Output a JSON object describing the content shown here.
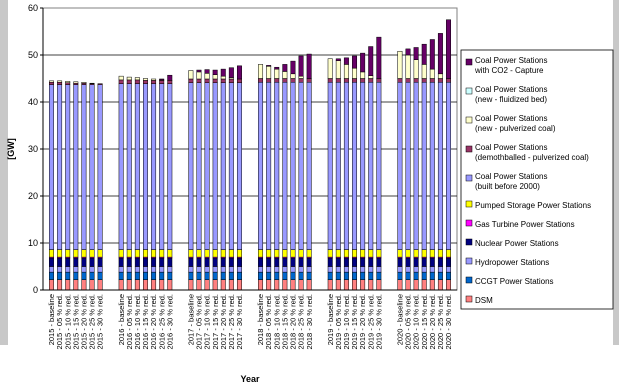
{
  "chart_data": {
    "type": "bar",
    "stacked": true,
    "title": "",
    "xlabel": "Year",
    "ylabel": "[GW]",
    "ylim": [
      0,
      60
    ],
    "yticks": [
      0,
      10,
      20,
      30,
      40,
      50,
      60
    ],
    "grid": true,
    "legend_position": "right",
    "categories": [
      "2015 - baseline",
      "2015 - 05 % red.",
      "2015 - 10 % red.",
      "2015 - 15 % red.",
      "2015 - 20 % red.",
      "2015 - 25 % red.",
      "2015 - 30 % red.",
      "2016 - baseline",
      "2016 - 05 % red.",
      "2016 - 10 % red.",
      "2016 - 15 % red.",
      "2016 - 20 % red.",
      "2016 - 25 % red.",
      "2016 - 30 % red.",
      "2017 - baseline",
      "2017 - 05 % red.",
      "2017 - 10 % red.",
      "2017 - 15 % red.",
      "2017 - 20 % red.",
      "2017 - 25 % red.",
      "2017 - 30 % red.",
      "2018 - baseline",
      "2018 - 05 % red.",
      "2018 - 10 % red.",
      "2018 - 15 % red.",
      "2018 - 20 % red.",
      "2018 - 25 % red.",
      "2018 - 30 % red.",
      "2019 - baseline",
      "2019 - 05 % red.",
      "2019 - 10 % red.",
      "2019 - 15 % red.",
      "2019 - 20 % red.",
      "2019 - 25 % red.",
      "2019 - 30 % red.",
      "2020 - baseline",
      "2020 - 05 % red.",
      "2020 - 10 % red.",
      "2020 - 15 % red.",
      "2020 - 20 % red.",
      "2020 - 25 % red.",
      "2020 - 30 % red."
    ],
    "series": [
      {
        "name": "DSM",
        "color": "#FF8080",
        "values": [
          2.2,
          2.2,
          2.2,
          2.2,
          2.2,
          2.2,
          2.2,
          2.2,
          2.2,
          2.2,
          2.2,
          2.2,
          2.2,
          2.2,
          2.2,
          2.2,
          2.2,
          2.2,
          2.2,
          2.2,
          2.2,
          2.2,
          2.2,
          2.2,
          2.2,
          2.2,
          2.2,
          2.2,
          2.2,
          2.2,
          2.2,
          2.2,
          2.2,
          2.2,
          2.2,
          2.2,
          2.2,
          2.2,
          2.2,
          2.2,
          2.2,
          2.2
        ]
      },
      {
        "name": "CCGT Power Stations",
        "color": "#0066CC",
        "values": [
          1.6,
          1.6,
          1.6,
          1.6,
          1.6,
          1.6,
          1.6,
          1.6,
          1.6,
          1.6,
          1.6,
          1.6,
          1.6,
          1.6,
          1.6,
          1.6,
          1.6,
          1.6,
          1.6,
          1.6,
          1.6,
          1.6,
          1.6,
          1.6,
          1.6,
          1.6,
          1.6,
          1.6,
          1.6,
          1.6,
          1.6,
          1.6,
          1.6,
          1.6,
          1.6,
          1.6,
          1.6,
          1.6,
          1.6,
          1.6,
          1.6,
          1.6
        ]
      },
      {
        "name": "Hydropower Stations",
        "color": "#9999FF",
        "values": [
          1.2,
          1.2,
          1.2,
          1.2,
          1.2,
          1.2,
          1.2,
          1.2,
          1.2,
          1.2,
          1.2,
          1.2,
          1.2,
          1.2,
          1.2,
          1.2,
          1.2,
          1.2,
          1.2,
          1.2,
          1.2,
          1.2,
          1.2,
          1.2,
          1.2,
          1.2,
          1.2,
          1.2,
          1.2,
          1.2,
          1.2,
          1.2,
          1.2,
          1.2,
          1.2,
          1.2,
          1.2,
          1.2,
          1.2,
          1.2,
          1.2,
          1.2
        ]
      },
      {
        "name": "Nuclear Power Stations",
        "color": "#000080",
        "values": [
          1.8,
          1.8,
          1.8,
          1.8,
          1.8,
          1.8,
          1.8,
          1.8,
          1.8,
          1.8,
          1.8,
          1.8,
          1.8,
          1.8,
          1.8,
          1.8,
          1.8,
          1.8,
          1.8,
          1.8,
          1.8,
          1.8,
          1.8,
          1.8,
          1.8,
          1.8,
          1.8,
          1.8,
          1.8,
          1.8,
          1.8,
          1.8,
          1.8,
          1.8,
          1.8,
          1.8,
          1.8,
          1.8,
          1.8,
          1.8,
          1.8,
          1.8
        ]
      },
      {
        "name": "Gas Turbine Power Stations",
        "color": "#FF00FF",
        "values": [
          0.2,
          0.2,
          0.2,
          0.2,
          0.2,
          0.2,
          0.2,
          0.2,
          0.2,
          0.2,
          0.2,
          0.2,
          0.2,
          0.2,
          0.2,
          0.2,
          0.2,
          0.2,
          0.2,
          0.2,
          0.2,
          0.2,
          0.2,
          0.2,
          0.2,
          0.2,
          0.2,
          0.2,
          0.2,
          0.2,
          0.2,
          0.2,
          0.2,
          0.2,
          0.2,
          0.2,
          0.2,
          0.2,
          0.2,
          0.2,
          0.2,
          0.2
        ]
      },
      {
        "name": "Pumped Storage Power Stations",
        "color": "#FFFF00",
        "values": [
          1.6,
          1.6,
          1.6,
          1.6,
          1.6,
          1.6,
          1.6,
          1.6,
          1.6,
          1.6,
          1.6,
          1.6,
          1.6,
          1.6,
          1.6,
          1.6,
          1.6,
          1.6,
          1.6,
          1.6,
          1.6,
          1.6,
          1.6,
          1.6,
          1.6,
          1.6,
          1.6,
          1.6,
          1.6,
          1.6,
          1.6,
          1.6,
          1.6,
          1.6,
          1.6,
          1.6,
          1.6,
          1.6,
          1.6,
          1.6,
          1.6,
          1.6
        ]
      },
      {
        "name": "Coal Power Stations\n(built before 2000)",
        "color": "#9999FF",
        "values": [
          35.1,
          35.1,
          35.1,
          35.1,
          35.1,
          35.1,
          35.1,
          35.3,
          35.3,
          35.3,
          35.3,
          35.3,
          35.3,
          35.3,
          35.5,
          35.5,
          35.5,
          35.5,
          35.5,
          35.5,
          35.5,
          35.6,
          35.6,
          35.6,
          35.6,
          35.6,
          35.6,
          35.6,
          35.6,
          35.6,
          35.6,
          35.6,
          35.6,
          35.6,
          35.6,
          35.6,
          35.6,
          35.6,
          35.6,
          35.6,
          35.6,
          35.6
        ]
      },
      {
        "name": "Coal Power Stations\n(demothballed - pulverized coal)",
        "color": "#993366",
        "values": [
          0.5,
          0.5,
          0.4,
          0.3,
          0.3,
          0.2,
          0.2,
          0.8,
          0.8,
          0.8,
          0.7,
          0.7,
          0.7,
          0.7,
          0.8,
          0.8,
          0.8,
          0.8,
          0.8,
          0.8,
          0.8,
          0.8,
          0.8,
          0.8,
          0.8,
          0.8,
          0.8,
          0.8,
          0.8,
          0.8,
          0.8,
          0.8,
          0.8,
          0.8,
          0.8,
          0.8,
          0.8,
          0.8,
          0.8,
          0.8,
          0.8,
          0.8
        ]
      },
      {
        "name": "Coal Power Stations\n(new - pulverized coal)",
        "color": "#FFFFCC",
        "values": [
          0.3,
          0.3,
          0.3,
          0.3,
          0.2,
          0.1,
          0.0,
          0.8,
          0.6,
          0.5,
          0.4,
          0.3,
          0.1,
          0.0,
          1.8,
          1.5,
          1.2,
          0.9,
          0.6,
          0.3,
          0.0,
          3.0,
          2.6,
          2.0,
          1.5,
          1.0,
          0.5,
          0.0,
          4.2,
          3.8,
          3.0,
          2.2,
          1.4,
          0.6,
          0.0,
          5.8,
          5.0,
          4.0,
          3.0,
          2.0,
          1.0,
          0.0
        ]
      },
      {
        "name": "Coal Power Stations\n(new - fluidized bed)",
        "color": "#CCFFFF",
        "values": [
          0.0,
          0.0,
          0.0,
          0.0,
          0.0,
          0.0,
          0.0,
          0.0,
          0.0,
          0.0,
          0.0,
          0.0,
          0.0,
          0.0,
          0.0,
          0.0,
          0.0,
          0.0,
          0.0,
          0.0,
          0.0,
          0.0,
          0.0,
          0.0,
          0.0,
          0.0,
          0.0,
          0.0,
          0.0,
          0.0,
          0.0,
          0.0,
          0.0,
          0.0,
          0.0,
          0.0,
          0.0,
          0.0,
          0.0,
          0.0,
          0.0,
          0.0
        ]
      },
      {
        "name": "Coal Power Stations\nwith CO2 - Capture",
        "color": "#660066",
        "values": [
          0.0,
          0.0,
          0.0,
          0.0,
          0.0,
          0.0,
          0.0,
          0.0,
          0.0,
          0.0,
          0.0,
          0.0,
          0.2,
          1.1,
          0.0,
          0.4,
          0.8,
          1.0,
          1.5,
          2.1,
          2.8,
          0.0,
          0.2,
          0.4,
          1.5,
          2.7,
          4.3,
          5.2,
          0.0,
          0.4,
          1.4,
          2.6,
          4.0,
          6.2,
          8.8,
          0.0,
          1.3,
          2.6,
          4.3,
          6.3,
          8.6,
          12.5
        ]
      }
    ]
  }
}
